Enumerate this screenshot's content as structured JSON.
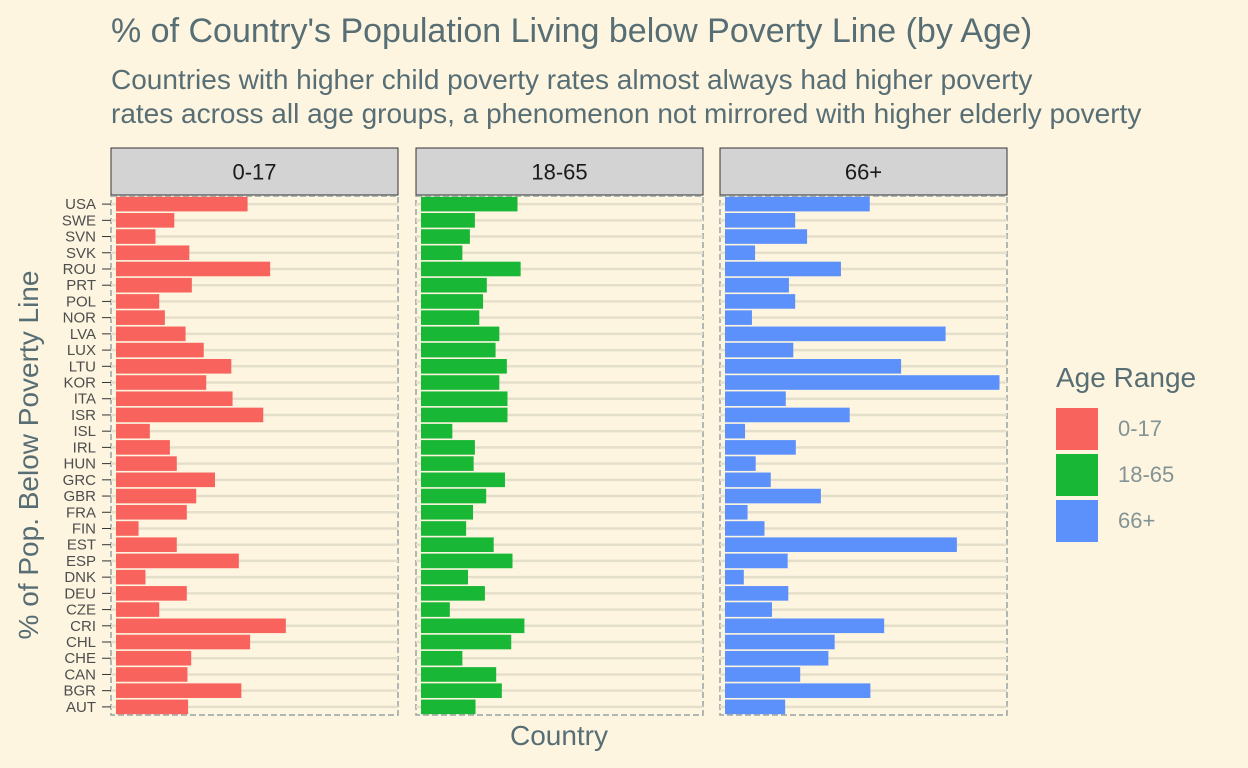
{
  "chart_data": {
    "type": "bar",
    "title": "% of Country's Population Living below Poverty Line (by Age)",
    "subtitle_lines": [
      "Countries with higher child poverty rates almost always had higher poverty",
      "rates across all age groups, a phenomenon not mirrored with higher elderly poverty"
    ],
    "xlabel": "Country",
    "ylabel": "% of Pop. Below Poverty Line",
    "legend_title": "Age Range",
    "legend_position": "right",
    "grid": true,
    "orientation": "horizontal",
    "categories": [
      "USA",
      "SWE",
      "SVN",
      "SVK",
      "ROU",
      "PRT",
      "POL",
      "NOR",
      "LVA",
      "LUX",
      "LTU",
      "KOR",
      "ITA",
      "ISR",
      "ISL",
      "IRL",
      "HUN",
      "GRC",
      "GBR",
      "FRA",
      "FIN",
      "EST",
      "ESP",
      "DNK",
      "DEU",
      "CZE",
      "CRI",
      "CHL",
      "CHE",
      "CAN",
      "BGR",
      "AUT"
    ],
    "xlim": [
      0,
      45
    ],
    "series": [
      {
        "name": "0-17",
        "color": "#f8635d",
        "values": [
          21.0,
          9.3,
          6.3,
          11.7,
          24.6,
          12.1,
          6.9,
          7.8,
          11.1,
          14.0,
          18.4,
          14.4,
          18.6,
          23.5,
          5.4,
          8.6,
          9.7,
          15.8,
          12.8,
          11.3,
          3.6,
          9.7,
          19.6,
          4.7,
          11.3,
          6.9,
          27.1,
          21.4,
          12.0,
          11.4,
          20.0,
          11.5
        ]
      },
      {
        "name": "18-65",
        "color": "#18b735",
        "values": [
          15.4,
          8.6,
          7.8,
          6.6,
          15.9,
          10.5,
          9.9,
          9.3,
          12.5,
          11.9,
          13.7,
          12.5,
          13.8,
          13.8,
          5.0,
          8.6,
          8.4,
          13.4,
          10.4,
          8.3,
          7.2,
          11.6,
          14.6,
          7.5,
          10.2,
          4.6,
          16.5,
          14.4,
          6.6,
          12.0,
          12.9,
          8.7
        ]
      },
      {
        "name": "66+",
        "color": "#5c90fb",
        "values": [
          23.1,
          11.2,
          13.1,
          4.8,
          18.5,
          10.2,
          11.2,
          4.3,
          35.2,
          10.9,
          28.1,
          43.8,
          9.7,
          19.9,
          3.2,
          11.3,
          4.9,
          7.3,
          15.3,
          3.6,
          6.3,
          37.0,
          10.0,
          3.0,
          10.1,
          7.5,
          25.4,
          17.5,
          16.5,
          12.0,
          23.2,
          9.6
        ]
      }
    ]
  }
}
